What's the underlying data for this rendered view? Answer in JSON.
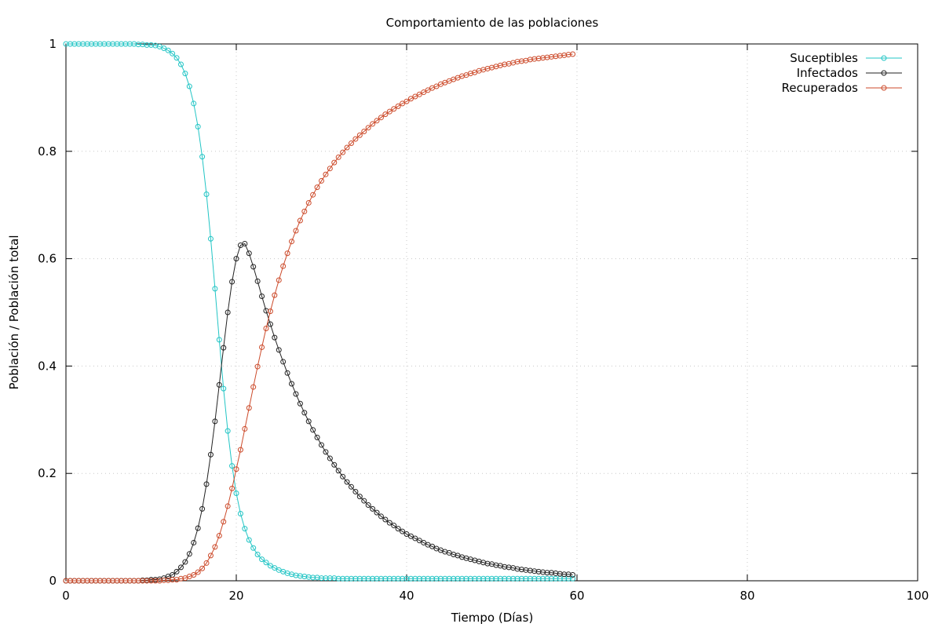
{
  "chart_data": {
    "type": "line",
    "title": "Comportamiento de las poblaciones",
    "xlabel": "Tiempo (Días)",
    "ylabel": "Población / Población total",
    "xlim": [
      0,
      100
    ],
    "ylim": [
      0,
      1
    ],
    "xticks": [
      0,
      20,
      40,
      60,
      80,
      100
    ],
    "yticks": [
      0,
      0.2,
      0.4,
      0.6,
      0.8,
      1
    ],
    "xtick_labels": [
      "0",
      "20",
      "40",
      "60",
      "80",
      "100"
    ],
    "ytick_labels": [
      "0",
      "0.2",
      "0.4",
      "0.6",
      "0.8",
      "1"
    ],
    "grid": true,
    "legend_position": "top-right",
    "marker": "open-circle",
    "x_step": 0.5,
    "x_start": 0,
    "x_end": 59.5,
    "series": [
      {
        "name": "Suceptibles",
        "color": "#22c5c5",
        "values": [
          1.0,
          1.0,
          1.0,
          1.0,
          1.0,
          1.0,
          1.0,
          1.0,
          1.0,
          1.0,
          1.0,
          1.0,
          1.0,
          1.0,
          1.0,
          1.0,
          1.0,
          0.999,
          0.999,
          0.998,
          0.998,
          0.997,
          0.995,
          0.992,
          0.988,
          0.982,
          0.974,
          0.962,
          0.945,
          0.921,
          0.889,
          0.846,
          0.79,
          0.72,
          0.637,
          0.544,
          0.449,
          0.358,
          0.279,
          0.214,
          0.163,
          0.125,
          0.097,
          0.076,
          0.061,
          0.049,
          0.04,
          0.034,
          0.028,
          0.024,
          0.02,
          0.017,
          0.014,
          0.012,
          0.01,
          0.009,
          0.008,
          0.007,
          0.006,
          0.006,
          0.005,
          0.005,
          0.005,
          0.005,
          0.004,
          0.004,
          0.004,
          0.004,
          0.004,
          0.004,
          0.004,
          0.004,
          0.004,
          0.004,
          0.004,
          0.004,
          0.004,
          0.004,
          0.004,
          0.004,
          0.004,
          0.004,
          0.004,
          0.004,
          0.004,
          0.004,
          0.004,
          0.004,
          0.004,
          0.004,
          0.004,
          0.004,
          0.004,
          0.004,
          0.004,
          0.004,
          0.004,
          0.004,
          0.004,
          0.004,
          0.004,
          0.004,
          0.004,
          0.004,
          0.004,
          0.004,
          0.004,
          0.004,
          0.004,
          0.004,
          0.004,
          0.004,
          0.004,
          0.004,
          0.004,
          0.004,
          0.004,
          0.004,
          0.004,
          0.004
        ]
      },
      {
        "name": "Infectados",
        "color": "#222222",
        "values": [
          0.0,
          0.0,
          0.0,
          0.0,
          0.0,
          0.0,
          0.0,
          0.0,
          0.0,
          0.0,
          0.0,
          0.0,
          0.0,
          0.0,
          0.0,
          0.0,
          0.0,
          0.0,
          0.001,
          0.001,
          0.002,
          0.002,
          0.003,
          0.005,
          0.008,
          0.011,
          0.017,
          0.025,
          0.035,
          0.05,
          0.071,
          0.098,
          0.134,
          0.18,
          0.235,
          0.297,
          0.365,
          0.434,
          0.5,
          0.557,
          0.6,
          0.625,
          0.628,
          0.61,
          0.585,
          0.558,
          0.53,
          0.503,
          0.478,
          0.453,
          0.43,
          0.408,
          0.387,
          0.367,
          0.348,
          0.33,
          0.313,
          0.297,
          0.281,
          0.267,
          0.253,
          0.24,
          0.228,
          0.216,
          0.205,
          0.194,
          0.184,
          0.175,
          0.166,
          0.157,
          0.149,
          0.141,
          0.134,
          0.127,
          0.12,
          0.114,
          0.108,
          0.103,
          0.097,
          0.092,
          0.087,
          0.083,
          0.079,
          0.075,
          0.071,
          0.067,
          0.064,
          0.06,
          0.057,
          0.054,
          0.052,
          0.049,
          0.047,
          0.044,
          0.042,
          0.04,
          0.038,
          0.036,
          0.034,
          0.032,
          0.031,
          0.029,
          0.028,
          0.026,
          0.025,
          0.024,
          0.022,
          0.021,
          0.02,
          0.019,
          0.018,
          0.017,
          0.016,
          0.015,
          0.015,
          0.014,
          0.013,
          0.012,
          0.012,
          0.011
        ]
      },
      {
        "name": "Recuperados",
        "color": "#cc4a2a",
        "values": [
          0.0,
          0.0,
          0.0,
          0.0,
          0.0,
          0.0,
          0.0,
          0.0,
          0.0,
          0.0,
          0.0,
          0.0,
          0.0,
          0.0,
          0.0,
          0.0,
          0.0,
          0.0,
          0.0,
          0.0,
          0.0,
          0.0,
          0.0,
          0.001,
          0.001,
          0.002,
          0.002,
          0.004,
          0.005,
          0.008,
          0.011,
          0.016,
          0.023,
          0.033,
          0.047,
          0.063,
          0.084,
          0.11,
          0.139,
          0.172,
          0.208,
          0.244,
          0.283,
          0.322,
          0.361,
          0.399,
          0.435,
          0.47,
          0.502,
          0.532,
          0.56,
          0.586,
          0.61,
          0.632,
          0.652,
          0.671,
          0.688,
          0.704,
          0.719,
          0.733,
          0.745,
          0.757,
          0.768,
          0.779,
          0.789,
          0.798,
          0.807,
          0.815,
          0.823,
          0.83,
          0.837,
          0.844,
          0.851,
          0.857,
          0.863,
          0.869,
          0.874,
          0.879,
          0.884,
          0.889,
          0.893,
          0.898,
          0.902,
          0.906,
          0.91,
          0.914,
          0.918,
          0.921,
          0.925,
          0.928,
          0.931,
          0.934,
          0.937,
          0.94,
          0.942,
          0.945,
          0.947,
          0.95,
          0.952,
          0.954,
          0.956,
          0.958,
          0.96,
          0.962,
          0.963,
          0.965,
          0.967,
          0.968,
          0.969,
          0.971,
          0.972,
          0.973,
          0.974,
          0.975,
          0.976,
          0.977,
          0.978,
          0.979,
          0.98,
          0.981
        ]
      }
    ]
  }
}
